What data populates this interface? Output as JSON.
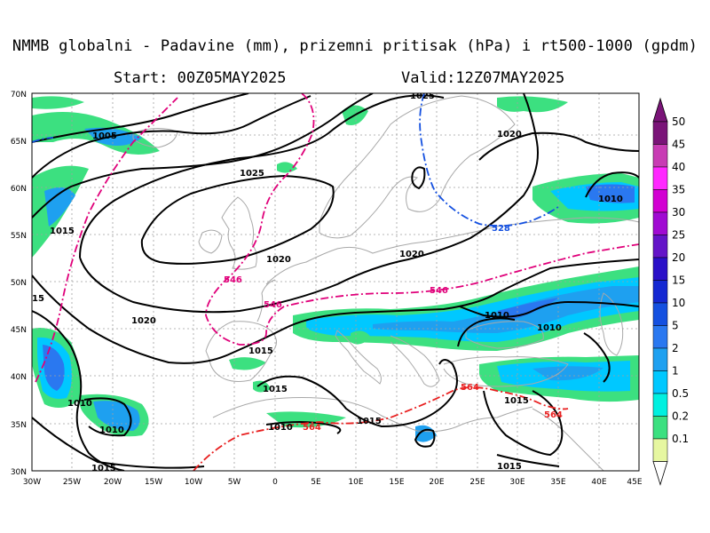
{
  "title": "NMMB globalni - Padavine (mm), prizemni pritisak (hPa) i rt500-1000 (gpdm)",
  "start": "Start: 00Z05MAY2025",
  "valid": "Valid:12Z07MAY2025",
  "lat_labels": [
    "70N",
    "65N",
    "60N",
    "55N",
    "50N",
    "45N",
    "40N",
    "35N",
    "30N"
  ],
  "lon_labels": [
    "30W",
    "25W",
    "20W",
    "15W",
    "10W",
    "5W",
    "0",
    "5E",
    "10E",
    "15E",
    "20E",
    "25E",
    "30E",
    "35E",
    "40E",
    "45E"
  ],
  "legend": {
    "values": [
      "0.1",
      "0.2",
      "0.5",
      "1",
      "2",
      "5",
      "10",
      "15",
      "20",
      "25",
      "30",
      "35",
      "40",
      "45",
      "50"
    ],
    "colors": [
      "#e6f7a0",
      "#3ce080",
      "#00f0e0",
      "#00c8ff",
      "#1ea0f0",
      "#2a78f0",
      "#1450e0",
      "#1428d2",
      "#2a10c8",
      "#6414c8",
      "#a00ad2",
      "#d200d2",
      "#ff28ff",
      "#c83cb4",
      "#7a1478"
    ]
  },
  "isobar_labels": [
    "1005",
    "1015",
    "1025",
    "1020",
    "1020",
    "1025",
    "1010",
    "1020",
    "1020",
    "1015",
    "1015",
    "1010",
    "1010",
    "1010",
    "1015",
    "1015",
    "1015",
    "1010",
    "1015",
    "1010",
    "15"
  ],
  "thickness_labels": [
    "528",
    "546",
    "546",
    "546",
    "564",
    "564",
    "564"
  ],
  "colors": {
    "isobar": "#000000",
    "thickness_546": "#e0007a",
    "thickness_564": "#e82020",
    "thickness_528": "#1450e0",
    "coast": "#a8a8a8",
    "grid": "#a0a0a0"
  }
}
